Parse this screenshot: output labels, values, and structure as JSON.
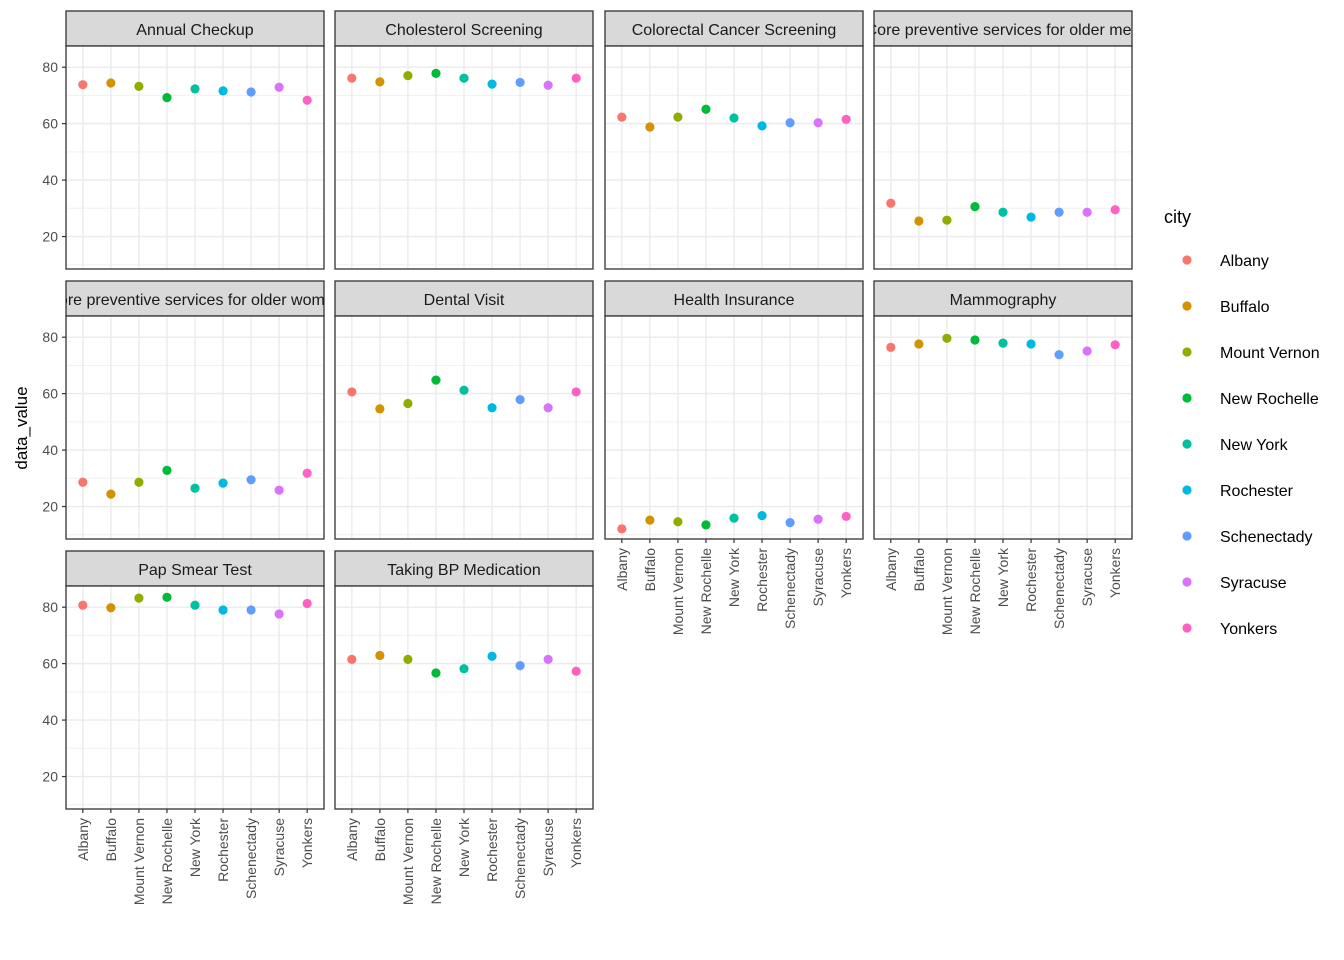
{
  "chart_data": {
    "type": "scatter",
    "facet_layout": "wrap",
    "ylabel": "data_value",
    "xlabel": "",
    "ylim": [
      8.5,
      87.5
    ],
    "y_ticks": [
      20,
      40,
      60,
      80
    ],
    "grid": true,
    "legend": {
      "title": "city",
      "placement": "right",
      "entries": [
        "Albany",
        "Buffalo",
        "Mount Vernon",
        "New Rochelle",
        "New York",
        "Rochester",
        "Schenectady",
        "Syracuse",
        "Yonkers"
      ]
    },
    "categories": [
      "Albany",
      "Buffalo",
      "Mount Vernon",
      "New Rochelle",
      "New York",
      "Rochester",
      "Schenectady",
      "Syracuse",
      "Yonkers"
    ],
    "colors": [
      "#F8766D",
      "#D39200",
      "#93AA00",
      "#00BA38",
      "#00C19F",
      "#00B9E3",
      "#619CFF",
      "#DB72FB",
      "#FF61C3"
    ],
    "panels": [
      {
        "label": "Annual Checkup",
        "values": [
          73.8,
          74.4,
          73.2,
          69.2,
          72.3,
          71.6,
          71.2,
          72.9,
          68.3
        ]
      },
      {
        "label": "Cholesterol Screening",
        "values": [
          76.1,
          74.8,
          77.0,
          77.8,
          76.1,
          74.0,
          74.6,
          73.6,
          76.1
        ]
      },
      {
        "label": "Colorectal Cancer Screening",
        "values": [
          62.3,
          58.8,
          62.3,
          65.1,
          62.0,
          59.2,
          60.3,
          60.3,
          61.5
        ]
      },
      {
        "label": "Core preventive services for older men",
        "values": [
          31.8,
          25.5,
          25.8,
          30.6,
          28.6,
          26.9,
          28.6,
          28.6,
          29.5
        ]
      },
      {
        "label": "Core preventive services for older women",
        "values": [
          28.6,
          24.4,
          28.6,
          32.8,
          26.5,
          28.3,
          29.5,
          25.8,
          31.8
        ]
      },
      {
        "label": "Dental Visit",
        "values": [
          60.6,
          54.6,
          56.5,
          64.8,
          61.2,
          55.0,
          57.9,
          55.0,
          60.6
        ]
      },
      {
        "label": "Health Insurance",
        "values": [
          12.1,
          15.2,
          14.6,
          13.5,
          15.9,
          16.8,
          14.3,
          15.5,
          16.5
        ]
      },
      {
        "label": "Mammography",
        "values": [
          76.4,
          77.6,
          79.6,
          79.0,
          77.9,
          77.6,
          73.8,
          75.1,
          77.3
        ]
      },
      {
        "label": "Pap Smear Test",
        "values": [
          80.7,
          79.8,
          83.2,
          83.5,
          80.7,
          79.0,
          79.0,
          77.6,
          81.3
        ]
      },
      {
        "label": "Taking BP Medication",
        "values": [
          61.5,
          62.9,
          61.5,
          56.7,
          58.2,
          62.6,
          59.3,
          61.5,
          57.3
        ]
      }
    ]
  }
}
